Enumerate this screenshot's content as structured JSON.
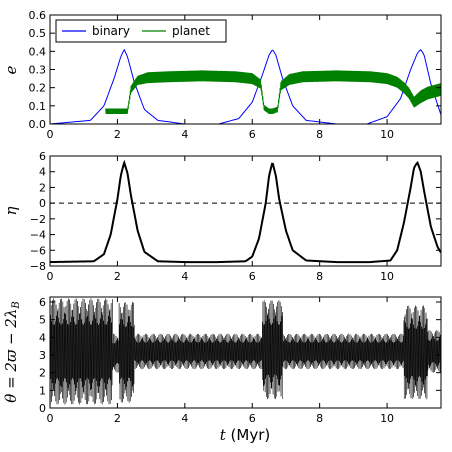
{
  "chart_data": [
    {
      "type": "line",
      "ylabel": "e",
      "xlim": [
        0,
        11.6
      ],
      "ylim": [
        0,
        0.6
      ],
      "xticks": [
        "0",
        "2",
        "4",
        "6",
        "8",
        "10"
      ],
      "yticks": [
        "0.0",
        "0.1",
        "0.2",
        "0.3",
        "0.4",
        "0.5",
        "0.6"
      ],
      "legend": {
        "placement": "top-left",
        "entries": [
          "binary",
          "planet"
        ]
      },
      "series": [
        {
          "name": "binary",
          "color": "#0000ff",
          "x": [
            0,
            1.2,
            1.6,
            1.9,
            2.1,
            2.2,
            2.3,
            2.5,
            2.8,
            3.2,
            4,
            5,
            5.6,
            6,
            6.3,
            6.5,
            6.6,
            6.7,
            6.9,
            7.2,
            7.6,
            8.5,
            9.4,
            10,
            10.4,
            10.7,
            10.9,
            11,
            11.1,
            11.3,
            11.6
          ],
          "y": [
            0.0,
            0.02,
            0.1,
            0.25,
            0.37,
            0.41,
            0.37,
            0.23,
            0.08,
            0.02,
            0.0,
            0.0,
            0.03,
            0.12,
            0.27,
            0.38,
            0.41,
            0.38,
            0.25,
            0.1,
            0.02,
            0.0,
            0.0,
            0.04,
            0.14,
            0.3,
            0.39,
            0.41,
            0.38,
            0.22,
            0.05
          ]
        },
        {
          "name": "planet",
          "color": "#008000",
          "x": [
            1.65,
            1.8,
            2.0,
            2.08,
            2.3,
            2.4,
            2.6,
            2.9,
            3.5,
            4.5,
            5.5,
            6.0,
            6.25,
            6.35,
            6.5,
            6.6,
            6.75,
            6.85,
            7.1,
            7.5,
            8.5,
            9.5,
            10.0,
            10.3,
            10.5,
            10.65,
            10.8,
            11.0,
            11.2,
            11.4,
            11.6
          ],
          "y": [
            0.07,
            0.07,
            0.07,
            0.07,
            0.07,
            0.19,
            0.24,
            0.255,
            0.26,
            0.265,
            0.26,
            0.25,
            0.22,
            0.09,
            0.07,
            0.07,
            0.08,
            0.21,
            0.245,
            0.26,
            0.265,
            0.26,
            0.25,
            0.23,
            0.2,
            0.17,
            0.12,
            0.15,
            0.17,
            0.18,
            0.19
          ],
          "amplitude": [
            0.015,
            0.015,
            0.015,
            0.015,
            0.015,
            0.02,
            0.025,
            0.03,
            0.03,
            0.03,
            0.03,
            0.03,
            0.025,
            0.015,
            0.015,
            0.015,
            0.015,
            0.025,
            0.03,
            0.03,
            0.03,
            0.03,
            0.03,
            0.03,
            0.03,
            0.03,
            0.03,
            0.035,
            0.035,
            0.035,
            0.035
          ]
        }
      ]
    },
    {
      "type": "line",
      "ylabel": "η",
      "xlim": [
        0,
        11.6
      ],
      "ylim": [
        -8,
        6
      ],
      "xticks": [
        "0",
        "2",
        "4",
        "6",
        "8",
        "10"
      ],
      "yticks": [
        "−8",
        "−6",
        "−4",
        "−2",
        "0",
        "2",
        "4",
        "6"
      ],
      "reference_line": {
        "y": 0,
        "style": "dashed"
      },
      "series": [
        {
          "color": "#000000",
          "x": [
            0,
            1.3,
            1.6,
            1.8,
            2.0,
            2.1,
            2.2,
            2.3,
            2.4,
            2.6,
            2.8,
            3.2,
            4,
            5,
            5.8,
            6.0,
            6.2,
            6.4,
            6.5,
            6.6,
            6.7,
            6.8,
            7.0,
            7.2,
            7.6,
            8.5,
            9.5,
            10.1,
            10.3,
            10.5,
            10.7,
            10.8,
            10.9,
            11.0,
            11.1,
            11.3,
            11.5,
            11.6
          ],
          "y": [
            -7.5,
            -7.4,
            -6.5,
            -4.0,
            0.5,
            3.5,
            5.2,
            3.8,
            1.0,
            -3.5,
            -6.2,
            -7.4,
            -7.5,
            -7.5,
            -7.4,
            -6.8,
            -4.5,
            0.0,
            3.5,
            5.2,
            3.5,
            0.5,
            -3.5,
            -6.0,
            -7.3,
            -7.5,
            -7.5,
            -7.3,
            -6.0,
            -2.5,
            2.0,
            4.5,
            5.2,
            4.0,
            1.5,
            -3.0,
            -5.6,
            -6.3
          ]
        }
      ]
    },
    {
      "type": "line",
      "ylabel": "θ = 2ϖ − 2λ",
      "ylabel_subscript": "B",
      "xlabel": "t",
      "xlabel_unit": "(Myr)",
      "xlim": [
        0,
        11.6
      ],
      "ylim": [
        0,
        6.283
      ],
      "xticks": [
        "0",
        "2",
        "4",
        "6",
        "8",
        "10"
      ],
      "yticks": [
        "0",
        "1",
        "2",
        "3",
        "4",
        "5",
        "6"
      ],
      "series": [
        {
          "color": "#000000",
          "description_regions": [
            {
              "x": [
                0,
                1.85
              ],
              "low": 0.2,
              "high": 6.2
            },
            {
              "x": [
                1.85,
                2.05
              ],
              "low": 2.0,
              "high": 4.2
            },
            {
              "x": [
                2.05,
                2.5
              ],
              "low": 0.3,
              "high": 6.0
            },
            {
              "x": [
                2.5,
                6.3
              ],
              "low": 2.2,
              "high": 4.2
            },
            {
              "x": [
                6.3,
                6.9
              ],
              "low": 0.5,
              "high": 6.1
            },
            {
              "x": [
                6.9,
                10.5
              ],
              "low": 2.2,
              "high": 4.2
            },
            {
              "x": [
                10.5,
                11.2
              ],
              "low": 0.5,
              "high": 5.8
            },
            {
              "x": [
                11.2,
                11.6
              ],
              "low": 2.0,
              "high": 4.4
            }
          ]
        }
      ]
    }
  ]
}
